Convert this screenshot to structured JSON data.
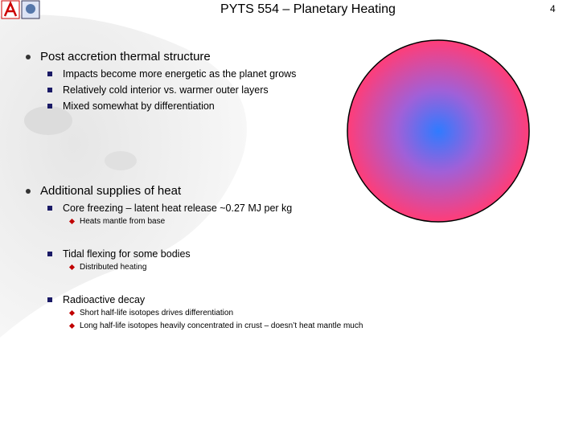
{
  "header": {
    "title": "PYTS 554 – Planetary Heating",
    "page_number": "4"
  },
  "bullets": [
    {
      "text": "Post accretion thermal structure",
      "items": [
        {
          "text": "Impacts become more energetic as the planet grows",
          "items": []
        },
        {
          "text": "Relatively cold interior vs. warmer outer layers",
          "items": []
        },
        {
          "text": "Mixed somewhat by differentiation",
          "items": []
        }
      ]
    },
    {
      "text": "Additional supplies of heat",
      "items": [
        {
          "text": "Core freezing – latent heat release ~0.27 MJ per kg",
          "items": [
            "Heats mantle from base"
          ]
        },
        {
          "text": "Tidal flexing for some bodies",
          "items": [
            "Distributed heating"
          ]
        },
        {
          "text": "Radioactive decay",
          "items": [
            "Short half-life isotopes drives differentiation",
            "Long half-life isotopes heavily concentrated in crust – doesn’t heat mantle much"
          ]
        }
      ]
    }
  ]
}
